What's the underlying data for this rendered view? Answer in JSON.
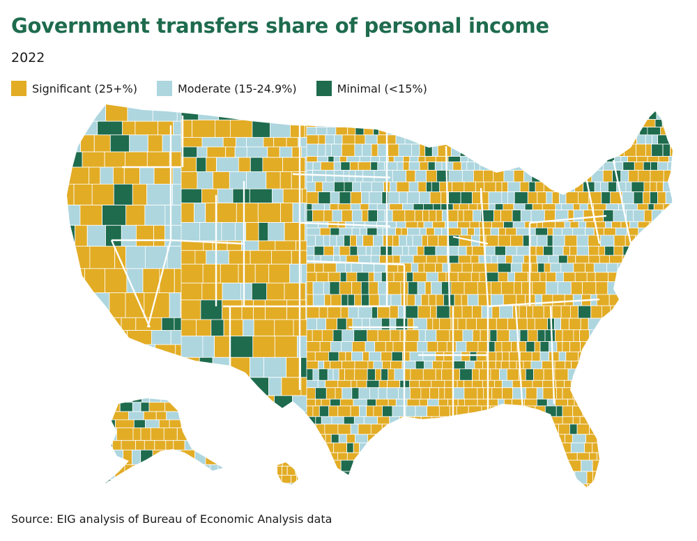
{
  "title": "Government transfers share of personal income",
  "subtitle": "2022",
  "legend": {
    "items": [
      {
        "label": "Significant (25+%)",
        "color": "#e2ac25"
      },
      {
        "label": "Moderate (15-24.9%)",
        "color": "#add6df"
      },
      {
        "label": "Minimal (<15%)",
        "color": "#1e6b4e"
      }
    ]
  },
  "source": "Source: EIG analysis of Bureau of Economic Analysis data",
  "map": {
    "type": "choropleth",
    "geography": "US counties",
    "border_color": "#ffffff",
    "state_border_color": "#ffffff"
  }
}
